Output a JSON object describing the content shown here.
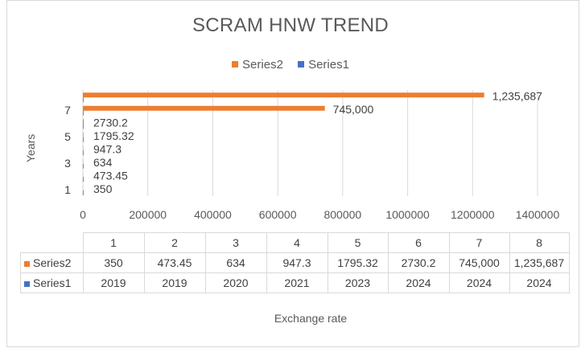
{
  "chart_data": {
    "type": "bar",
    "orientation": "horizontal",
    "title": "SCRAM HNW TREND",
    "xlabel": "Exchange rate",
    "ylabel": "Years",
    "xlim": [
      0,
      1400000
    ],
    "x_ticks": [
      "0",
      "200000",
      "400000",
      "600000",
      "800000",
      "1000000",
      "1200000",
      "1400000"
    ],
    "y_ticks": [
      "1",
      "3",
      "5",
      "7"
    ],
    "categories": [
      "1",
      "2",
      "3",
      "4",
      "5",
      "6",
      "7",
      "8"
    ],
    "series": [
      {
        "name": "Series2",
        "color": "#ed7d31",
        "values": [
          350,
          473.45,
          634,
          947.3,
          1795.32,
          2730.2,
          745000,
          1235687
        ],
        "labels": [
          "350",
          "473.45",
          "634",
          "947.3",
          "1795.32",
          "2730.2",
          "745,000",
          "1,235,687"
        ]
      },
      {
        "name": "Series1",
        "color": "#4472c4",
        "values": [
          2019,
          2019,
          2020,
          2021,
          2023,
          2024,
          2024,
          2024
        ],
        "labels": [
          "2019",
          "2019",
          "2020",
          "2021",
          "2023",
          "2024",
          "2024",
          "2024"
        ]
      }
    ],
    "legend_position": "top",
    "grid": "vertical",
    "data_table": true
  }
}
